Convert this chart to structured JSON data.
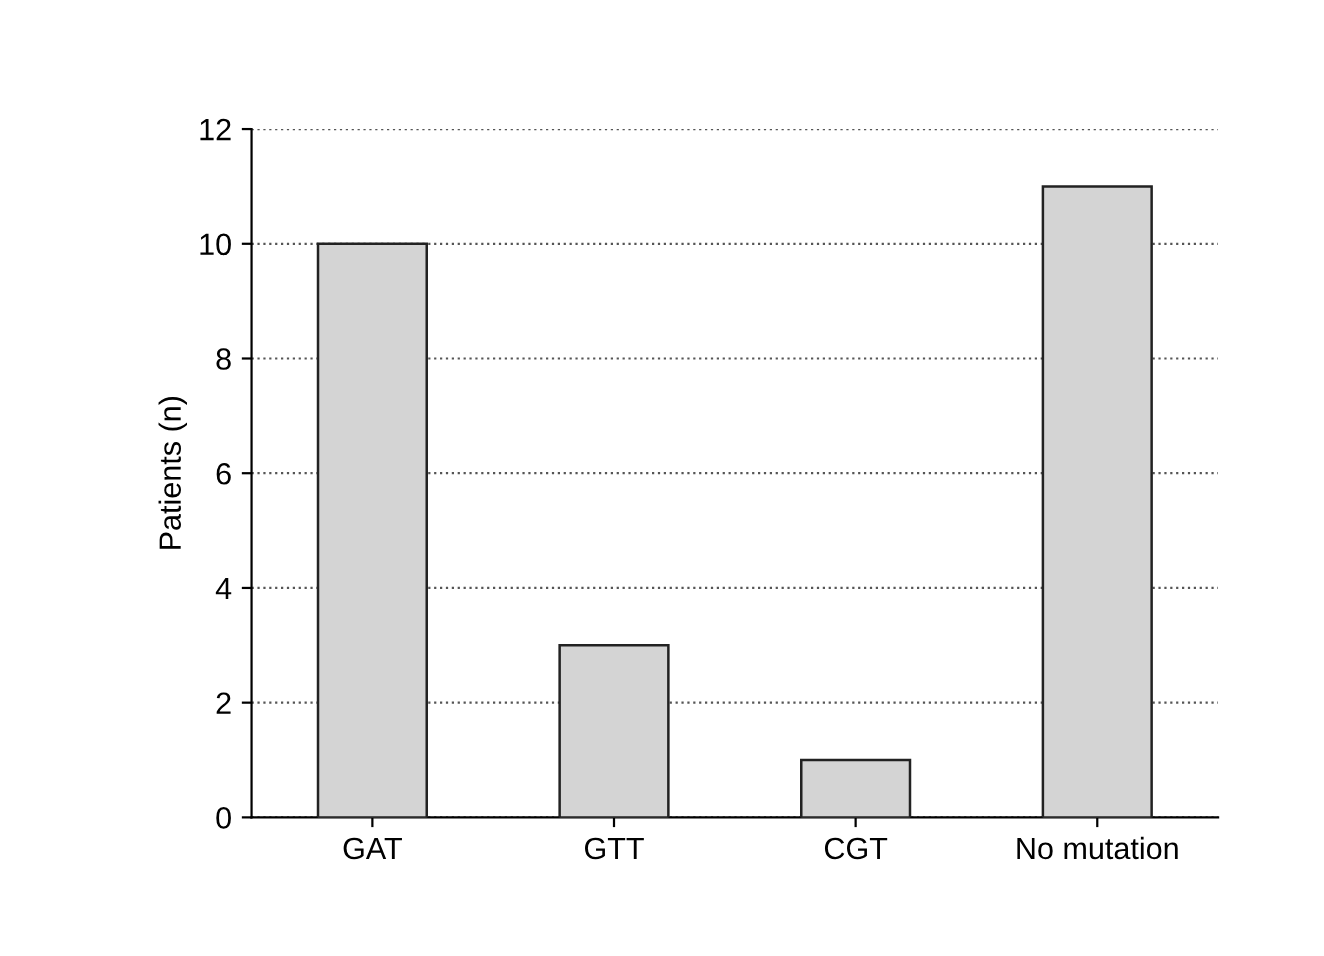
{
  "chart_data": {
    "type": "bar",
    "ylabel": "Patients (n)",
    "categories": [
      "GAT",
      "GTT",
      "CGT",
      "No mutation"
    ],
    "values": [
      10,
      3,
      1,
      11
    ],
    "color": "#d4d4d4",
    "ylim": [
      0,
      12
    ],
    "yticks": [
      0,
      2,
      4,
      6,
      8,
      10,
      12
    ],
    "grid": "y"
  }
}
